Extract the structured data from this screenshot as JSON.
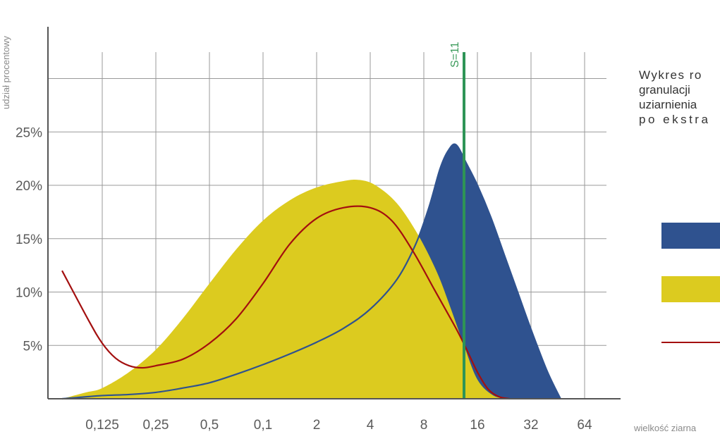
{
  "colors": {
    "blue": "#2f528f",
    "yellow": "#dccb1f",
    "red": "#a30f0f",
    "green": "#2e9456",
    "grid": "#999999",
    "axis": "#555555"
  },
  "side_text": {
    "line1": "Wykres ro",
    "line2": "granulacji",
    "line3": "uziarnienia",
    "line4": "po ekstra"
  },
  "legend": [
    {
      "swatch": "blue-area"
    },
    {
      "swatch": "yellow-area"
    },
    {
      "swatch": "red-line"
    }
  ],
  "chart_data": {
    "type": "area",
    "ylabel": "udział procentowy",
    "xlabel": "wielkość ziarna",
    "y_ticks": [
      "5%",
      "10%",
      "15%",
      "20%",
      "25%"
    ],
    "y_tick_values": [
      5,
      10,
      15,
      20,
      25
    ],
    "x_ticks": [
      "0,125",
      "0,25",
      "0,5",
      "0,1",
      "2",
      "4",
      "8",
      "16",
      "32",
      "64"
    ],
    "ylim": [
      0,
      32
    ],
    "grid": true,
    "marker": {
      "label": "S=11",
      "x_index": 6.75
    },
    "series": [
      {
        "kind": "area",
        "color": "#2f528f",
        "points": [
          [
            -0.75,
            0
          ],
          [
            -0.5,
            0.1
          ],
          [
            0,
            0.3
          ],
          [
            0.5,
            0.4
          ],
          [
            1,
            0.6
          ],
          [
            1.5,
            1
          ],
          [
            2,
            1.5
          ],
          [
            2.5,
            2.3
          ],
          [
            3,
            3.2
          ],
          [
            3.5,
            4.2
          ],
          [
            4,
            5.3
          ],
          [
            4.5,
            6.6
          ],
          [
            5,
            8.4
          ],
          [
            5.5,
            11.2
          ],
          [
            5.85,
            14.5
          ],
          [
            6.1,
            18
          ],
          [
            6.3,
            21.5
          ],
          [
            6.45,
            23.2
          ],
          [
            6.6,
            23.8
          ],
          [
            6.8,
            22
          ],
          [
            7,
            20
          ],
          [
            7.25,
            17
          ],
          [
            7.5,
            13.5
          ],
          [
            7.75,
            10
          ],
          [
            8,
            6.5
          ],
          [
            8.3,
            2.6
          ],
          [
            8.55,
            0
          ]
        ]
      },
      {
        "kind": "area",
        "color": "#dccb1f",
        "points": [
          [
            -0.75,
            0
          ],
          [
            -0.3,
            0.6
          ],
          [
            0,
            1
          ],
          [
            0.5,
            2.5
          ],
          [
            1,
            4.6
          ],
          [
            1.5,
            7.5
          ],
          [
            2,
            10.8
          ],
          [
            2.5,
            14
          ],
          [
            3,
            16.7
          ],
          [
            3.5,
            18.6
          ],
          [
            4,
            19.8
          ],
          [
            4.5,
            20.4
          ],
          [
            4.8,
            20.5
          ],
          [
            5.1,
            20
          ],
          [
            5.5,
            18.3
          ],
          [
            5.9,
            15.3
          ],
          [
            6.25,
            11.8
          ],
          [
            6.5,
            8.5
          ],
          [
            6.75,
            5
          ],
          [
            7,
            1.8
          ],
          [
            7.3,
            0.3
          ],
          [
            7.6,
            0
          ]
        ]
      },
      {
        "kind": "line",
        "color": "#a30f0f",
        "points": [
          [
            -0.75,
            12
          ],
          [
            -0.25,
            7.3
          ],
          [
            0,
            5.2
          ],
          [
            0.25,
            3.8
          ],
          [
            0.5,
            3.1
          ],
          [
            0.75,
            2.9
          ],
          [
            1,
            3.1
          ],
          [
            1.5,
            3.7
          ],
          [
            2,
            5.2
          ],
          [
            2.5,
            7.5
          ],
          [
            3,
            10.8
          ],
          [
            3.5,
            14.5
          ],
          [
            4,
            16.9
          ],
          [
            4.5,
            17.9
          ],
          [
            5,
            17.9
          ],
          [
            5.4,
            16.7
          ],
          [
            5.8,
            13.8
          ],
          [
            6.2,
            10.2
          ],
          [
            6.6,
            6.6
          ],
          [
            6.8,
            4.6
          ],
          [
            7,
            2.5
          ],
          [
            7.2,
            0.9
          ],
          [
            7.4,
            0.2
          ],
          [
            7.6,
            0
          ]
        ]
      }
    ]
  }
}
